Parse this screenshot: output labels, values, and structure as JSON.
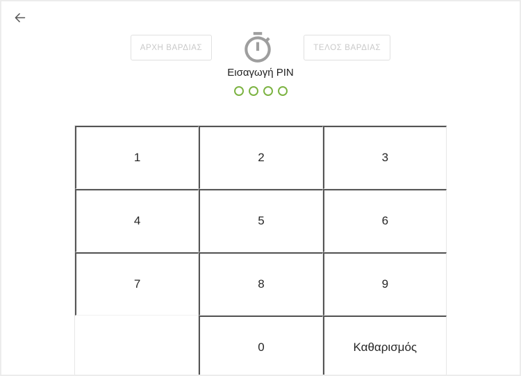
{
  "header": {
    "back_icon": "arrow-left",
    "start_shift_label": "ΑΡΧΗ ΒΑΡΔΙΑΣ",
    "end_shift_label": "ΤΕΛΟΣ ΒΑΡΔΙΑΣ",
    "timer_icon": "stopwatch",
    "pin_prompt": "Εισαγωγή PIN",
    "pin": {
      "dots_total": 4,
      "dots_filled": 0
    }
  },
  "keypad": {
    "rows": [
      [
        "1",
        "2",
        "3"
      ],
      [
        "4",
        "5",
        "6"
      ],
      [
        "7",
        "8",
        "9"
      ],
      [
        "",
        "0",
        "Καθαρισμός"
      ]
    ]
  },
  "colors": {
    "pin_dot_green": "#7cb342",
    "icon_gray": "#9e9e9e",
    "arrow_gray": "#555555",
    "frame_border": "#ececec",
    "grid_border": "#e6e6e6",
    "disabled_text": "#c9c9c9",
    "text_dark": "#262626"
  }
}
